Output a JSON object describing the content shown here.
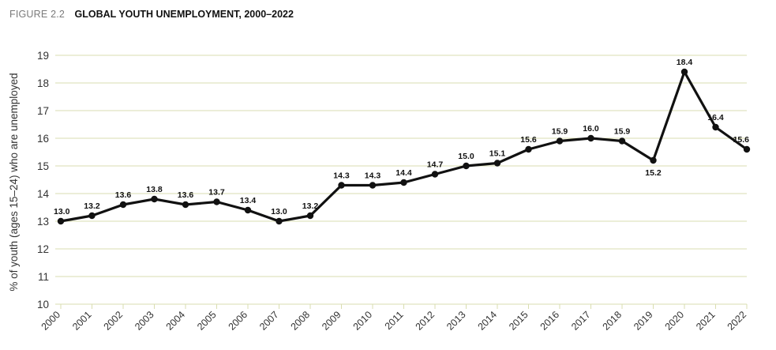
{
  "figure": {
    "label": "FIGURE 2.2",
    "title": "GLOBAL YOUTH UNEMPLOYMENT, 2000–2022"
  },
  "colors": {
    "line": "#111111",
    "grid": "#d9ddb0",
    "axis_text": "#333333"
  },
  "chart_data": {
    "type": "line",
    "title": "GLOBAL YOUTH UNEMPLOYMENT, 2000–2022",
    "xlabel": "",
    "ylabel": "% of youth (ages 15–24) who are unemployed",
    "ylim": [
      10,
      19
    ],
    "yticks": [
      10,
      11,
      12,
      13,
      14,
      15,
      16,
      17,
      18,
      19
    ],
    "grid": "horizontal",
    "legend": "none",
    "x": [
      "2000",
      "2001",
      "2002",
      "2003",
      "2004",
      "2005",
      "2006",
      "2007",
      "2008",
      "2009",
      "2010",
      "2011",
      "2012",
      "2013",
      "2014",
      "2015",
      "2016",
      "2017",
      "2018",
      "2019",
      "2020",
      "2021",
      "2022"
    ],
    "series": [
      {
        "values": [
          13.0,
          13.2,
          13.6,
          13.8,
          13.6,
          13.7,
          13.4,
          13.0,
          13.2,
          14.3,
          14.3,
          14.4,
          14.7,
          15.0,
          15.1,
          15.6,
          15.9,
          16.0,
          15.9,
          15.2,
          18.4,
          16.4,
          15.6
        ],
        "labels": [
          "13.0",
          "13.2",
          "13.6",
          "13.8",
          "13.6",
          "13.7",
          "13.4",
          "13.0",
          "13.2",
          "14.3",
          "14.3",
          "14.4",
          "14.7",
          "15.0",
          "15.1",
          "15.6",
          "15.9",
          "16.0",
          "15.9",
          "15.2",
          "18.4",
          "16.4",
          "15.6"
        ]
      }
    ]
  }
}
